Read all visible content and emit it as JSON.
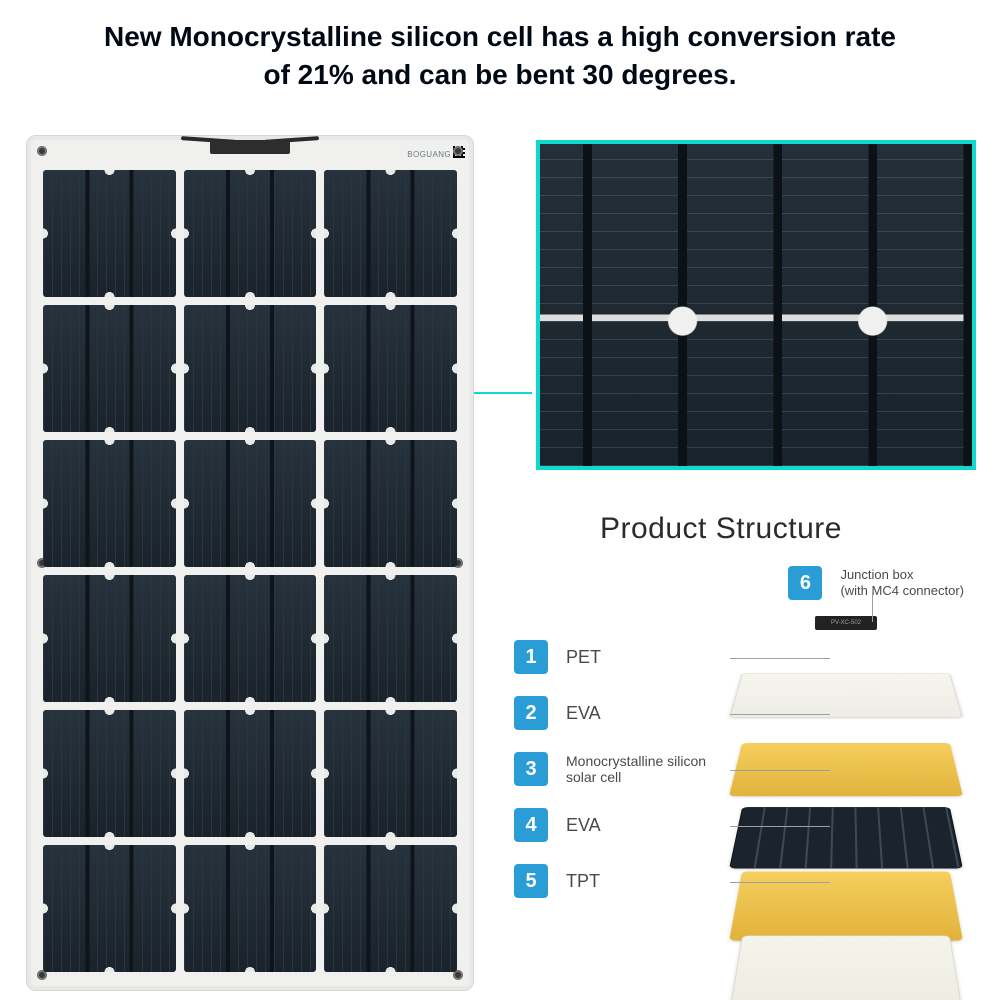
{
  "headline": "New Monocrystalline silicon cell has a high conversion rate of 21% and can be bent 30 degrees.",
  "panel": {
    "brand_text": "BOGUANG",
    "grid": {
      "cols": 3,
      "rows": 6
    },
    "cell_base_color": "#1a232b",
    "frame_color": "#f0f0ee"
  },
  "closeup": {
    "border_color": "#11d8cf",
    "cell_color": "#1c2730"
  },
  "structure": {
    "title": "Product Structure",
    "junction": {
      "num": "6",
      "label": "Junction box\n(with MC4 connector)",
      "mini_label": "PV-XC-502"
    },
    "layers": [
      {
        "num": "1",
        "label": "PET",
        "color": "#f3f2ea"
      },
      {
        "num": "2",
        "label": "EVA",
        "color": "#efc552"
      },
      {
        "num": "3",
        "label": "Monocrystalline silicon solar cell",
        "color": "#1b242c",
        "small": true
      },
      {
        "num": "4",
        "label": "EVA",
        "color": "#efc552"
      },
      {
        "num": "5",
        "label": "TPT",
        "color": "#f3f2ea"
      }
    ],
    "badge_color": "#2a9dd6"
  }
}
